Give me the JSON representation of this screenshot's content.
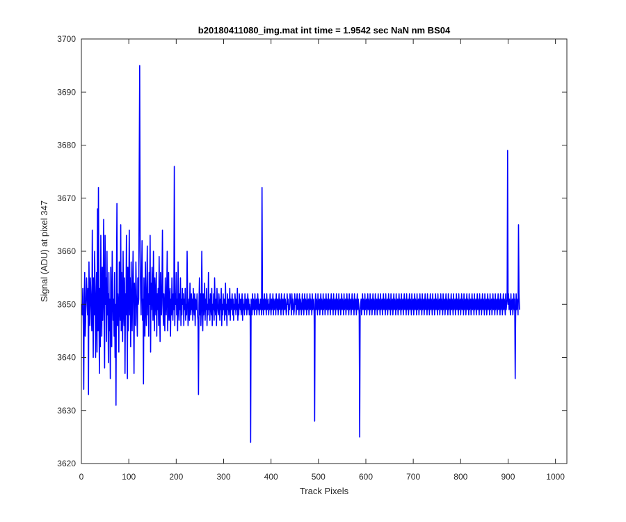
{
  "chart_data": {
    "type": "line",
    "title": "b20180411080_img.mat int time = 1.9542 sec  NaN nm BS04",
    "xlabel": "Track Pixels",
    "ylabel": "Signal (ADU) at pixel 347",
    "xlim": [
      0,
      1024
    ],
    "ylim": [
      3620,
      3700
    ],
    "xticks": [
      0,
      100,
      200,
      300,
      400,
      500,
      600,
      700,
      800,
      900,
      1000
    ],
    "yticks": [
      3620,
      3630,
      3640,
      3650,
      3660,
      3670,
      3680,
      3690,
      3700
    ],
    "grid": false,
    "line_color": "#0000ff",
    "series": [
      {
        "x_start": 1,
        "x_step": 1,
        "values": [
          3650,
          3648,
          3653,
          3646,
          3634,
          3651,
          3656,
          3644,
          3647,
          3652,
          3655,
          3651,
          3648,
          3653,
          3633,
          3658,
          3650,
          3646,
          3655,
          3652,
          3649,
          3645,
          3664,
          3651,
          3640,
          3655,
          3648,
          3660,
          3652,
          3640,
          3650,
          3656,
          3641,
          3668,
          3645,
          3672,
          3650,
          3637,
          3653,
          3642,
          3663,
          3650,
          3644,
          3657,
          3647,
          3652,
          3666,
          3646,
          3638,
          3663,
          3650,
          3655,
          3643,
          3660,
          3648,
          3652,
          3639,
          3656,
          3645,
          3651,
          3636,
          3657,
          3649,
          3642,
          3660,
          3653,
          3647,
          3651,
          3644,
          3656,
          3640,
          3650,
          3631,
          3655,
          3669,
          3646,
          3652,
          3649,
          3641,
          3658,
          3650,
          3647,
          3665,
          3645,
          3656,
          3651,
          3643,
          3660,
          3649,
          3646,
          3655,
          3637,
          3652,
          3648,
          3663,
          3650,
          3636,
          3657,
          3645,
          3652,
          3664,
          3648,
          3655,
          3642,
          3658,
          3650,
          3645,
          3653,
          3660,
          3651,
          3637,
          3654,
          3648,
          3646,
          3658,
          3652,
          3649,
          3644,
          3655,
          3650,
          3651,
          3676,
          3695,
          3660,
          3652,
          3648,
          3655,
          3662,
          3647,
          3651,
          3635,
          3655,
          3649,
          3644,
          3658,
          3650,
          3646,
          3653,
          3661,
          3648,
          3652,
          3644,
          3656,
          3650,
          3663,
          3641,
          3654,
          3649,
          3657,
          3652,
          3647,
          3660,
          3650,
          3645,
          3655,
          3651,
          3648,
          3656,
          3644,
          3652,
          3649,
          3653,
          3646,
          3659,
          3650,
          3643,
          3656,
          3651,
          3648,
          3654,
          3664,
          3650,
          3646,
          3652,
          3649,
          3645,
          3655,
          3651,
          3648,
          3652,
          3660,
          3645,
          3650,
          3656,
          3647,
          3650,
          3653,
          3644,
          3651,
          3648,
          3655,
          3650,
          3647,
          3652,
          3649,
          3676,
          3646,
          3652,
          3650,
          3656,
          3648,
          3651,
          3645,
          3658,
          3650,
          3647,
          3652,
          3649,
          3655,
          3646,
          3651,
          3648,
          3653,
          3650,
          3652,
          3646,
          3651,
          3649,
          3653,
          3647,
          3650,
          3648,
          3660,
          3652,
          3646,
          3649,
          3651,
          3647,
          3654,
          3650,
          3648,
          3652,
          3649,
          3651,
          3647,
          3653,
          3650,
          3648,
          3652,
          3646,
          3651,
          3650,
          3649,
          3652,
          3648,
          3647,
          3633,
          3650,
          3655,
          3648,
          3652,
          3646,
          3650,
          3660,
          3649,
          3645,
          3652,
          3648,
          3650,
          3654,
          3647,
          3651,
          3649,
          3653,
          3646,
          3650,
          3648,
          3656,
          3649,
          3651,
          3647,
          3652,
          3650,
          3648,
          3653,
          3646,
          3650,
          3649,
          3652,
          3647,
          3655,
          3650,
          3648,
          3651,
          3646,
          3653,
          3650,
          3649,
          3648,
          3652,
          3650,
          3647,
          3651,
          3649,
          3653,
          3646,
          3650,
          3648,
          3652,
          3649,
          3651,
          3647,
          3650,
          3654,
          3648,
          3650,
          3646,
          3652,
          3649,
          3651,
          3648,
          3650,
          3653,
          3647,
          3651,
          3649,
          3650,
          3652,
          3648,
          3651,
          3647,
          3650,
          3649,
          3652,
          3650,
          3648,
          3651,
          3649,
          3653,
          3647,
          3650,
          3648,
          3652,
          3650,
          3649,
          3651,
          3648,
          3650,
          3652,
          3647,
          3651,
          3649,
          3650,
          3648,
          3652,
          3650,
          3649,
          3651,
          3648,
          3650,
          3652,
          3649,
          3651,
          3648,
          3650,
          3649,
          3624,
          3651,
          3650,
          3648,
          3652,
          3649,
          3651,
          3650,
          3648,
          3652,
          3649,
          3650,
          3651,
          3648,
          3650,
          3652,
          3649,
          3651,
          3648,
          3650,
          3649,
          3651,
          3650,
          3648,
          3672,
          3649,
          3651,
          3648,
          3650,
          3652,
          3649,
          3651,
          3650,
          3648,
          3652,
          3649,
          3650,
          3651,
          3648,
          3650,
          3649,
          3652,
          3650,
          3648,
          3651,
          3649,
          3650,
          3652,
          3648,
          3651,
          3649,
          3650,
          3651,
          3648,
          3652,
          3650,
          3649,
          3651,
          3648,
          3650,
          3652,
          3649,
          3651,
          3650,
          3648,
          3652,
          3649,
          3650,
          3651,
          3648,
          3650,
          3652,
          3649,
          3651,
          3650,
          3648,
          3649,
          3652,
          3650,
          3651,
          3648,
          3650,
          3649,
          3652,
          3651,
          3650,
          3648,
          3652,
          3649,
          3651,
          3650,
          3648,
          3649,
          3652,
          3650,
          3651,
          3648,
          3650,
          3652,
          3649,
          3651,
          3650,
          3648,
          3652,
          3649,
          3651,
          3650,
          3648,
          3650,
          3652,
          3649,
          3651,
          3648,
          3650,
          3652,
          3649,
          3651,
          3650,
          3648,
          3652,
          3649,
          3650,
          3651,
          3648,
          3650,
          3652,
          3649,
          3651,
          3650,
          3648,
          3652,
          3649,
          3650,
          3651,
          3648,
          3628,
          3650,
          3652,
          3649,
          3651,
          3650,
          3648,
          3652,
          3649,
          3650,
          3651,
          3648,
          3650,
          3652,
          3649,
          3651,
          3650,
          3648,
          3652,
          3649,
          3650,
          3651,
          3648,
          3650,
          3652,
          3649,
          3651,
          3650,
          3648,
          3652,
          3649,
          3650,
          3651,
          3648,
          3650,
          3652,
          3649,
          3651,
          3650,
          3648,
          3652,
          3649,
          3650,
          3651,
          3648,
          3650,
          3652,
          3649,
          3651,
          3650,
          3648,
          3652,
          3649,
          3650,
          3651,
          3648,
          3650,
          3652,
          3649,
          3651,
          3650,
          3648,
          3652,
          3649,
          3650,
          3651,
          3648,
          3650,
          3652,
          3649,
          3651,
          3650,
          3648,
          3652,
          3649,
          3650,
          3651,
          3648,
          3650,
          3652,
          3649,
          3651,
          3650,
          3648,
          3652,
          3649,
          3650,
          3651,
          3648,
          3650,
          3652,
          3649,
          3651,
          3650,
          3648,
          3625,
          3649,
          3650,
          3651,
          3648,
          3650,
          3652,
          3649,
          3651,
          3650,
          3648,
          3652,
          3649,
          3650,
          3651,
          3648,
          3650,
          3652,
          3649,
          3651,
          3650,
          3648,
          3652,
          3649,
          3650,
          3651,
          3648,
          3650,
          3652,
          3649,
          3651,
          3650,
          3648,
          3652,
          3649,
          3650,
          3651,
          3648,
          3650,
          3652,
          3649,
          3651,
          3650,
          3648,
          3652,
          3649,
          3650,
          3651,
          3648,
          3650,
          3652,
          3649,
          3651,
          3650,
          3648,
          3652,
          3649,
          3650,
          3651,
          3648,
          3650,
          3652,
          3649,
          3651,
          3650,
          3648,
          3652,
          3649,
          3650,
          3651,
          3648,
          3650,
          3652,
          3649,
          3651,
          3650,
          3648,
          3652,
          3649,
          3650,
          3651,
          3648,
          3650,
          3652,
          3649,
          3651,
          3650,
          3648,
          3652,
          3649,
          3650,
          3651,
          3648,
          3650,
          3652,
          3649,
          3651,
          3650,
          3648,
          3652,
          3649,
          3650,
          3651,
          3648,
          3650,
          3652,
          3649,
          3651,
          3650,
          3648,
          3652,
          3649,
          3650,
          3651,
          3648,
          3650,
          3652,
          3649,
          3651,
          3650,
          3648,
          3652,
          3649,
          3650,
          3651,
          3648,
          3650,
          3652,
          3649,
          3651,
          3650,
          3648,
          3652,
          3649,
          3650,
          3651,
          3648,
          3650,
          3652,
          3649,
          3651,
          3650,
          3648,
          3652,
          3649,
          3650,
          3651,
          3648,
          3650,
          3652,
          3649,
          3651,
          3650,
          3648,
          3652,
          3649,
          3650,
          3651,
          3648,
          3650,
          3652,
          3649,
          3651,
          3650,
          3648,
          3652,
          3649,
          3650,
          3651,
          3648,
          3650,
          3652,
          3649,
          3651,
          3650,
          3648,
          3652,
          3649,
          3650,
          3651,
          3648,
          3650,
          3652,
          3649,
          3651,
          3650,
          3648,
          3652,
          3649,
          3650,
          3651,
          3648,
          3650,
          3652,
          3649,
          3651,
          3650,
          3648,
          3652,
          3649,
          3650,
          3651,
          3648,
          3650,
          3652,
          3649,
          3651,
          3650,
          3648,
          3652,
          3649,
          3650,
          3651,
          3648,
          3650,
          3652,
          3649,
          3651,
          3650,
          3648,
          3652,
          3649,
          3650,
          3651,
          3648,
          3650,
          3652,
          3649,
          3651,
          3650,
          3648,
          3652,
          3649,
          3650,
          3651,
          3648,
          3650,
          3652,
          3649,
          3651,
          3650,
          3648,
          3652,
          3649,
          3650,
          3651,
          3648,
          3650,
          3652,
          3649,
          3651,
          3650,
          3648,
          3652,
          3649,
          3650,
          3651,
          3648,
          3650,
          3652,
          3649,
          3651,
          3650,
          3648,
          3652,
          3649,
          3650,
          3651,
          3648,
          3650,
          3652,
          3649,
          3651,
          3650,
          3648,
          3652,
          3649,
          3650,
          3651,
          3648,
          3650,
          3652,
          3649,
          3651,
          3650,
          3648,
          3652,
          3649,
          3650,
          3651,
          3648,
          3650,
          3652,
          3649,
          3651,
          3650,
          3648,
          3652,
          3649,
          3650,
          3651,
          3648,
          3650,
          3652,
          3649,
          3651,
          3650,
          3648,
          3652,
          3649,
          3650,
          3651,
          3679,
          3650,
          3652,
          3649,
          3651,
          3650,
          3648,
          3652,
          3649,
          3650,
          3651,
          3648,
          3650,
          3652,
          3649,
          3651,
          3636,
          3648,
          3652,
          3649,
          3650,
          3651,
          3648,
          3665,
          3652,
          3649
        ]
      }
    ]
  }
}
